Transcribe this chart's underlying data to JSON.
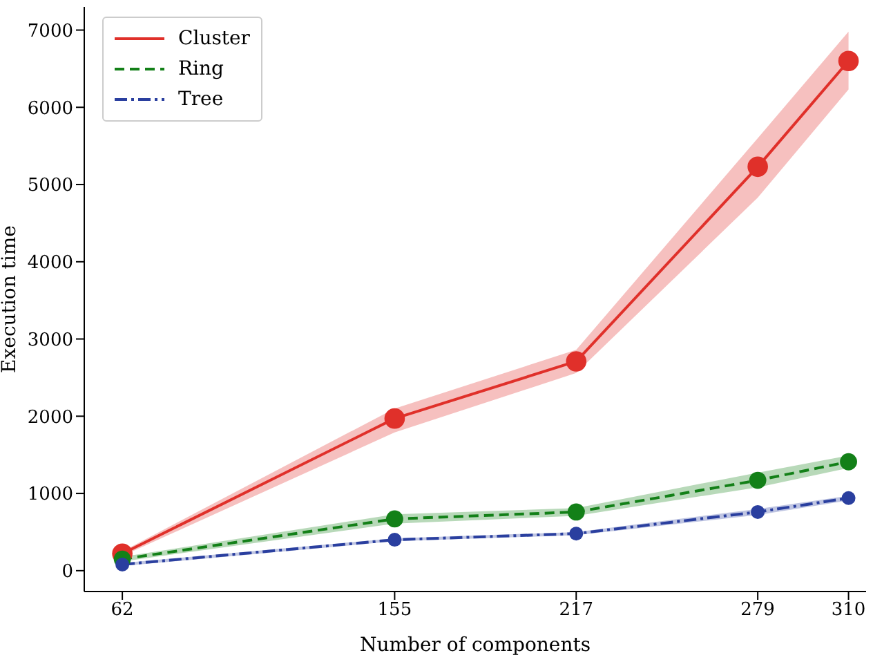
{
  "chart_data": {
    "type": "line",
    "xlabel": "Number of components",
    "ylabel": "Execution time",
    "x": [
      62,
      155,
      217,
      279,
      310
    ],
    "xlim": [
      49,
      316
    ],
    "xticks": [
      62,
      155,
      217,
      279,
      310
    ],
    "ylim": [
      -270,
      7300
    ],
    "yticks": [
      0,
      1000,
      2000,
      3000,
      4000,
      5000,
      6000,
      7000
    ],
    "legend": "top left",
    "marker": "circle",
    "grid": false,
    "series": [
      {
        "name": "Cluster",
        "color": "#e0302a",
        "line_style": "solid",
        "values": [
          220,
          1970,
          2710,
          5230,
          6600
        ],
        "lower": [
          190,
          1790,
          2560,
          4830,
          6230
        ],
        "upper": [
          250,
          2100,
          2860,
          5600,
          6980
        ]
      },
      {
        "name": "Ring",
        "color": "#138018",
        "line_style": "dashed",
        "values": [
          150,
          670,
          760,
          1170,
          1410
        ],
        "lower": [
          120,
          610,
          710,
          1080,
          1330
        ],
        "upper": [
          180,
          730,
          810,
          1270,
          1490
        ]
      },
      {
        "name": "Tree",
        "color": "#2a3f9f",
        "line_style": "dashdot",
        "values": [
          80,
          400,
          480,
          760,
          940
        ],
        "lower": [
          60,
          380,
          460,
          720,
          910
        ],
        "upper": [
          100,
          420,
          500,
          800,
          970
        ]
      }
    ]
  }
}
